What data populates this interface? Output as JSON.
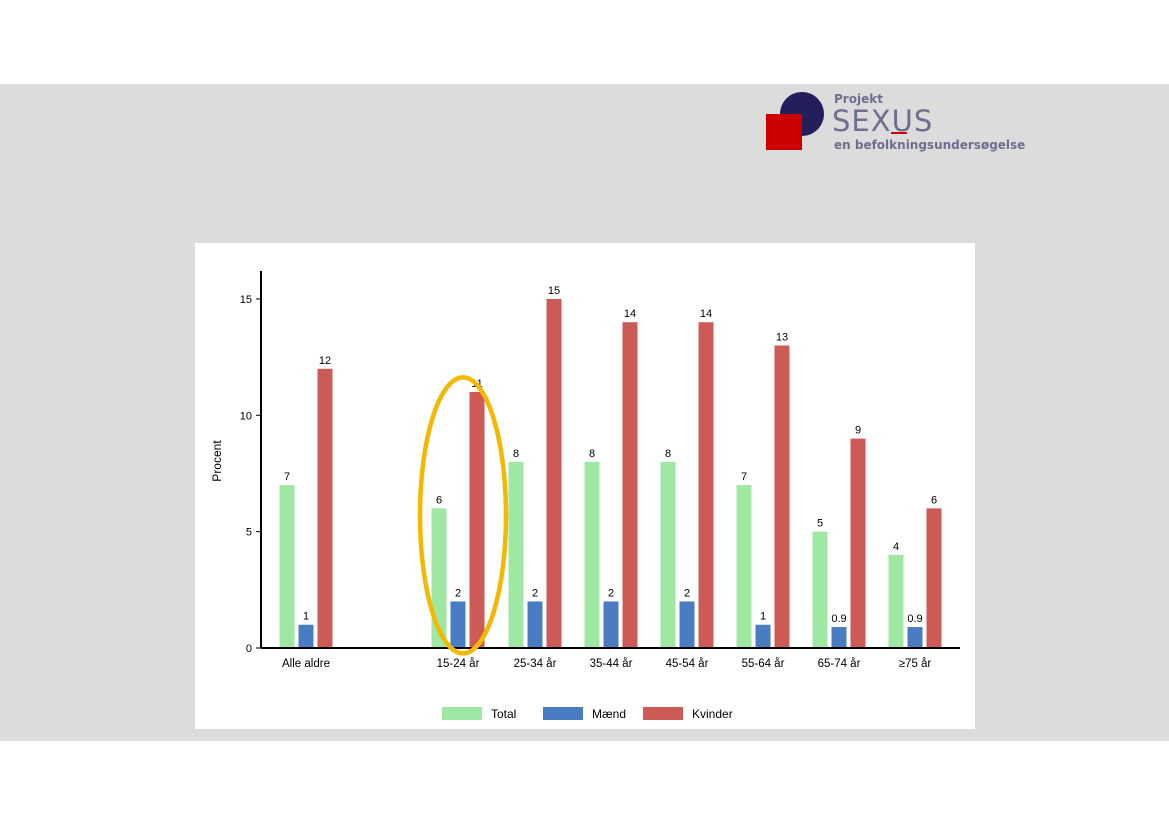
{
  "logo": {
    "line1": "Projekt",
    "wordmark": "SEXUS",
    "tagline": "en befolkningsundersøgelse",
    "colors": {
      "navy": "#221f5a",
      "red": "#cc0000",
      "text": "#6d6f8e"
    }
  },
  "chart_data": {
    "type": "bar",
    "title": "",
    "xlabel": "",
    "ylabel": "Procent",
    "ylim": [
      0,
      16
    ],
    "yticks": [
      0,
      5,
      10,
      15
    ],
    "categories": [
      "Alle aldre",
      "15-24 år",
      "25-34 år",
      "35-44 år",
      "45-54 år",
      "55-64 år",
      "65-74 år",
      "≥75 år"
    ],
    "series": [
      {
        "name": "Total",
        "color": "#9ee8a3",
        "values": [
          7,
          6,
          8,
          8,
          8,
          7,
          5,
          4
        ],
        "labels": [
          "7",
          "6",
          "8",
          "8",
          "8",
          "7",
          "5",
          "4"
        ]
      },
      {
        "name": "Mænd",
        "color": "#4a7cc4",
        "values": [
          1,
          2,
          2,
          2,
          2,
          1,
          0.9,
          0.9
        ],
        "labels": [
          "1",
          "2",
          "2",
          "2",
          "2",
          "1",
          "0.9",
          "0.9"
        ]
      },
      {
        "name": "Kvinder",
        "color": "#cd5b55",
        "values": [
          12,
          11,
          15,
          14,
          14,
          13,
          9,
          6
        ],
        "labels": [
          "12",
          "11",
          "15",
          "14",
          "14",
          "13",
          "9",
          "6"
        ]
      }
    ],
    "grid": false,
    "legend_position": "bottom-center",
    "highlight": {
      "category": "15-24 år",
      "shape": "ellipse",
      "color": "#f5b800"
    }
  }
}
